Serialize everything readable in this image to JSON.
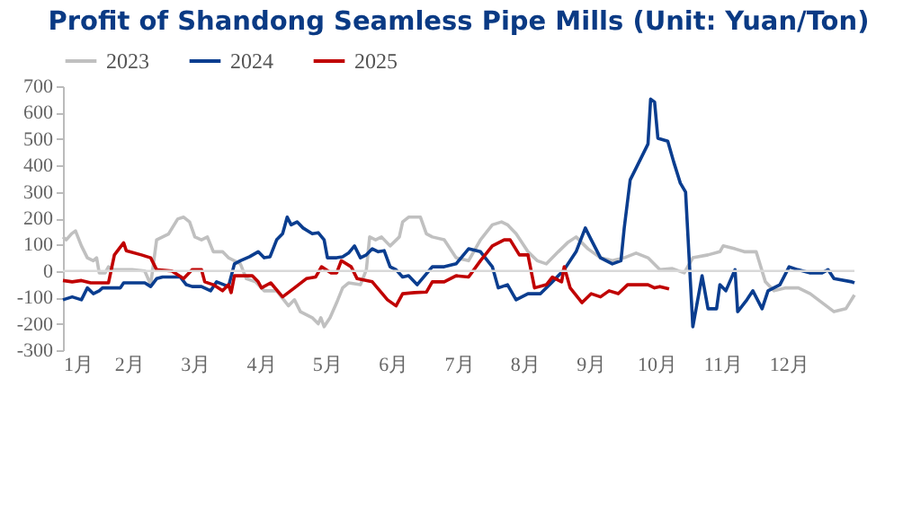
{
  "chart_data": {
    "type": "line",
    "title": "Profit of Shandong Seamless Pipe Mills (Unit: Yuan/Ton)",
    "xlim": [
      1,
      13
    ],
    "xticks": [
      {
        "value": 1,
        "label": "1月"
      },
      {
        "value": 2,
        "label": "2月"
      },
      {
        "value": 3,
        "label": "3月"
      },
      {
        "value": 4,
        "label": "4月"
      },
      {
        "value": 5,
        "label": "5月"
      },
      {
        "value": 6,
        "label": "6月"
      },
      {
        "value": 7,
        "label": "7月"
      },
      {
        "value": 8,
        "label": "8月"
      },
      {
        "value": 9,
        "label": "9月"
      },
      {
        "value": 10,
        "label": "10月"
      },
      {
        "value": 11,
        "label": "11月"
      },
      {
        "value": 12,
        "label": "12月"
      }
    ],
    "ylim": [
      -300,
      700
    ],
    "yticks": [
      -300,
      -200,
      -100,
      0,
      100,
      200,
      300,
      400,
      500,
      600,
      700
    ],
    "grid": false,
    "legend": "top",
    "marker": "none",
    "line_style": "solid",
    "ref_lines": [
      {
        "axis": "y",
        "value": 0,
        "color": "#d9d9d9"
      }
    ],
    "series": [
      {
        "name": "2023",
        "color": "#c0c0c0",
        "x": [
          1.0,
          1.05,
          1.13,
          1.19,
          1.28,
          1.37,
          1.46,
          1.51,
          1.55,
          1.64,
          1.69,
          1.78,
          2.05,
          2.24,
          2.33,
          2.42,
          2.6,
          2.74,
          2.83,
          2.92,
          3.0,
          3.1,
          3.19,
          3.28,
          3.42,
          3.51,
          3.69,
          3.78,
          3.92,
          4.05,
          4.24,
          4.42,
          4.51,
          4.6,
          4.78,
          4.87,
          4.91,
          4.96,
          5.05,
          5.15,
          5.24,
          5.33,
          5.51,
          5.6,
          5.65,
          5.74,
          5.83,
          5.96,
          6.1,
          6.15,
          6.24,
          6.42,
          6.51,
          6.6,
          6.78,
          6.96,
          7.15,
          7.33,
          7.51,
          7.65,
          7.74,
          7.87,
          8.05,
          8.19,
          8.33,
          8.51,
          8.65,
          8.78,
          8.96,
          9.15,
          9.33,
          9.51,
          9.69,
          9.87,
          10.05,
          10.24,
          10.42,
          10.55,
          10.78,
          10.96,
          11.01,
          11.19,
          11.33,
          11.51,
          11.65,
          11.78,
          11.96,
          12.15,
          12.33,
          12.51,
          12.69,
          12.87,
          13.0
        ],
        "values": [
          129,
          118,
          141,
          152,
          95,
          50,
          39,
          50,
          -7,
          -7,
          16,
          5,
          5,
          0,
          -52,
          118,
          140,
          197,
          204,
          186,
          129,
          118,
          129,
          73,
          73,
          50,
          27,
          -29,
          -41,
          -75,
          -75,
          -132,
          -109,
          -154,
          -177,
          -200,
          -177,
          -211,
          -177,
          -120,
          -64,
          -45,
          -52,
          5,
          129,
          118,
          129,
          95,
          129,
          186,
          204,
          204,
          141,
          129,
          118,
          50,
          39,
          118,
          175,
          186,
          175,
          141,
          73,
          39,
          27,
          73,
          107,
          129,
          84,
          50,
          39,
          50,
          68,
          50,
          5,
          9,
          -7,
          50,
          61,
          73,
          95,
          84,
          73,
          73,
          -41,
          -75,
          -64,
          -64,
          -86,
          -120,
          -154,
          -143,
          -91
        ]
      },
      {
        "name": "2024",
        "color": "#0a3d8f",
        "x": [
          1.0,
          1.14,
          1.28,
          1.37,
          1.46,
          1.55,
          1.6,
          1.69,
          1.87,
          1.92,
          2.24,
          2.33,
          2.42,
          2.51,
          2.78,
          2.87,
          2.96,
          3.1,
          3.24,
          3.33,
          3.51,
          3.6,
          3.69,
          3.83,
          3.96,
          4.05,
          4.14,
          4.24,
          4.33,
          4.4,
          4.46,
          4.55,
          4.64,
          4.78,
          4.87,
          4.96,
          5.01,
          5.15,
          5.24,
          5.33,
          5.42,
          5.51,
          5.6,
          5.69,
          5.78,
          5.87,
          5.96,
          6.05,
          6.15,
          6.24,
          6.37,
          6.6,
          6.78,
          6.96,
          7.15,
          7.33,
          7.51,
          7.6,
          7.74,
          7.87,
          8.05,
          8.24,
          8.42,
          8.6,
          8.78,
          8.92,
          9.01,
          9.15,
          9.33,
          9.46,
          9.51,
          9.6,
          9.69,
          9.87,
          9.91,
          9.97,
          10.02,
          10.17,
          10.26,
          10.36,
          10.44,
          10.55,
          10.69,
          10.78,
          10.91,
          10.96,
          11.05,
          11.19,
          11.23,
          11.37,
          11.46,
          11.6,
          11.69,
          11.87,
          12.01,
          12.14,
          12.32,
          12.51,
          12.6,
          12.69,
          12.96,
          13.0
        ],
        "values": [
          -109,
          -98,
          -109,
          -64,
          -86,
          -75,
          -64,
          -64,
          -64,
          -45,
          -45,
          -59,
          -29,
          -23,
          -23,
          -52,
          -59,
          -59,
          -75,
          -41,
          -59,
          27,
          39,
          54,
          73,
          50,
          54,
          118,
          141,
          204,
          175,
          186,
          163,
          141,
          145,
          118,
          50,
          50,
          54,
          68,
          95,
          50,
          61,
          84,
          73,
          77,
          16,
          5,
          -23,
          -18,
          -52,
          16,
          16,
          27,
          84,
          73,
          16,
          -64,
          -52,
          -109,
          -86,
          -86,
          -41,
          5,
          73,
          163,
          118,
          50,
          27,
          39,
          163,
          345,
          390,
          481,
          651,
          640,
          503,
          492,
          413,
          333,
          299,
          -211,
          -18,
          -143,
          -143,
          -52,
          -75,
          5,
          -154,
          -109,
          -75,
          -143,
          -75,
          -52,
          16,
          5,
          -7,
          -7,
          5,
          -29,
          -41,
          -45
        ]
      },
      {
        "name": "2025",
        "color": "#c00000",
        "x": [
          1.0,
          1.14,
          1.28,
          1.42,
          1.69,
          1.78,
          1.92,
          1.96,
          2.19,
          2.33,
          2.42,
          2.65,
          2.83,
          2.96,
          3.1,
          3.15,
          3.28,
          3.42,
          3.51,
          3.55,
          3.6,
          3.87,
          3.96,
          4.01,
          4.15,
          4.33,
          4.51,
          4.69,
          4.83,
          4.92,
          5.06,
          5.15,
          5.22,
          5.37,
          5.46,
          5.69,
          5.92,
          6.05,
          6.15,
          6.33,
          6.51,
          6.6,
          6.78,
          6.96,
          7.15,
          7.33,
          7.51,
          7.69,
          7.78,
          7.92,
          8.05,
          8.15,
          8.33,
          8.42,
          8.56,
          8.6,
          8.69,
          8.87,
          9.01,
          9.15,
          9.28,
          9.42,
          9.56,
          9.87,
          9.97,
          10.05,
          10.19
        ],
        "values": [
          -36,
          -41,
          -36,
          -45,
          -45,
          61,
          107,
          77,
          61,
          50,
          5,
          0,
          -29,
          5,
          5,
          -41,
          -52,
          -75,
          -52,
          -82,
          -18,
          -18,
          -41,
          -64,
          -45,
          -98,
          -64,
          -29,
          -23,
          16,
          -7,
          -7,
          39,
          16,
          -29,
          -41,
          -109,
          -132,
          -86,
          -82,
          -80,
          -41,
          -41,
          -18,
          -23,
          39,
          95,
          118,
          118,
          61,
          61,
          -64,
          -52,
          -23,
          -41,
          16,
          -64,
          -120,
          -86,
          -98,
          -75,
          -86,
          -52,
          -52,
          -64,
          -59,
          -68
        ]
      }
    ]
  }
}
